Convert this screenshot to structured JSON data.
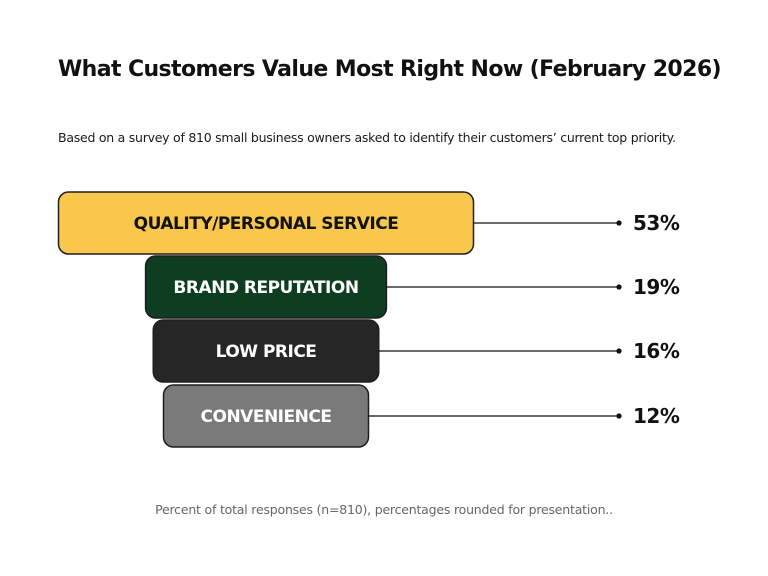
{
  "chart_data": {
    "type": "bar",
    "title": "What Customers Value Most Right Now (February 2026)",
    "subtitle": "Based on a survey of 810 small business owners asked to identify their customers’ current top priority.",
    "footnote": "Percent of total responses (n=810), percentages rounded for presentation..",
    "categories": [
      "QUALITY/PERSONAL SERVICE",
      "BRAND REPUTATION",
      "LOW PRICE",
      "CONVENIENCE"
    ],
    "values": [
      53,
      19,
      16,
      12
    ],
    "value_labels": [
      "53%",
      "19%",
      "16%",
      "12%"
    ],
    "colors": [
      "#F8C74C",
      "#0F3D21",
      "#262626",
      "#7A7A7A"
    ],
    "label_colors": [
      "#111111",
      "#ffffff",
      "#ffffff",
      "#ffffff"
    ],
    "border_color": "#1e1e1e",
    "leader_color": "#111111"
  }
}
